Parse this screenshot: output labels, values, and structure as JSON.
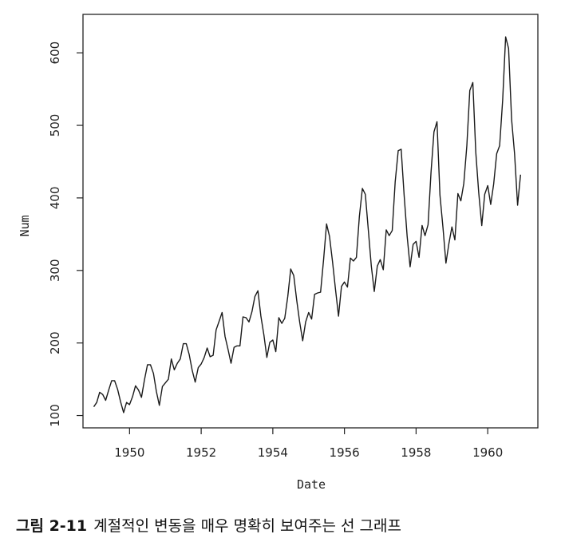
{
  "chart_data": {
    "type": "line",
    "title": "",
    "xlabel": "Date",
    "ylabel": "Num",
    "xlim": [
      1948.7,
      1961.4
    ],
    "ylim": [
      83,
      653
    ],
    "x_ticks": [
      "1950",
      "1952",
      "1954",
      "1956",
      "1958",
      "1960"
    ],
    "y_ticks": [
      "100",
      "200",
      "300",
      "400",
      "500",
      "600"
    ],
    "grid": false,
    "series": [
      {
        "x_start": 1949.0,
        "x_step": 0.0833333,
        "values": [
          112,
          118,
          132,
          129,
          121,
          135,
          148,
          148,
          136,
          119,
          104,
          118,
          115,
          126,
          141,
          135,
          125,
          149,
          170,
          170,
          158,
          133,
          114,
          140,
          145,
          150,
          178,
          163,
          172,
          178,
          199,
          199,
          184,
          162,
          146,
          166,
          171,
          180,
          193,
          181,
          183,
          218,
          230,
          242,
          209,
          191,
          172,
          194,
          196,
          196,
          236,
          235,
          229,
          243,
          264,
          272,
          237,
          211,
          180,
          201,
          204,
          188,
          235,
          227,
          234,
          264,
          302,
          293,
          259,
          229,
          203,
          229,
          242,
          233,
          267,
          269,
          270,
          315,
          364,
          347,
          312,
          274,
          237,
          278,
          284,
          277,
          317,
          313,
          318,
          374,
          413,
          405,
          355,
          306,
          271,
          306,
          315,
          301,
          356,
          348,
          355,
          422,
          465,
          467,
          404,
          347,
          305,
          336,
          340,
          318,
          362,
          348,
          363,
          435,
          491,
          505,
          404,
          359,
          310,
          337,
          360,
          342,
          406,
          396,
          420,
          472,
          548,
          559,
          463,
          407,
          362,
          405,
          417,
          391,
          419,
          461,
          472,
          535,
          622,
          606,
          508,
          461,
          390,
          432
        ]
      }
    ]
  },
  "caption": {
    "figure_label": "그림 2-11",
    "text": "계절적인 변동을 매우 명확히 보여주는 선 그래프"
  }
}
